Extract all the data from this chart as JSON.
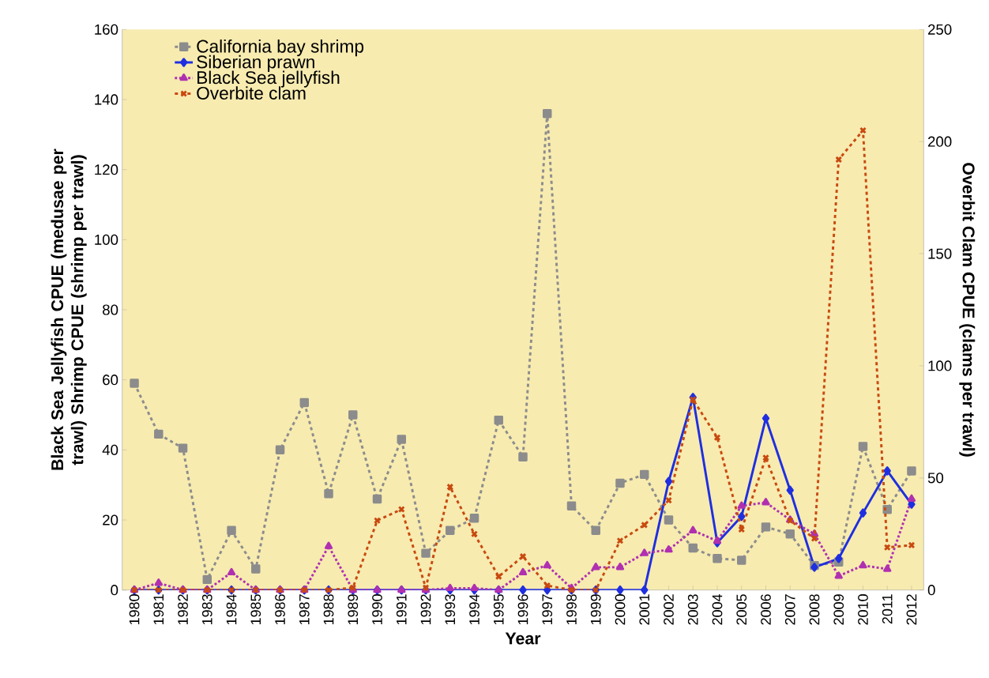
{
  "chart_data": {
    "type": "line",
    "xlabel": "Year",
    "ylabel": "Black Sea Jellyfish CPUE (medusae per trawl) Shrimp CPUE (shrimp per trawl)",
    "y2label": "Overbit Clam CPUE (clams per trawl)",
    "categories": [
      "1980",
      "1981",
      "1982",
      "1983",
      "1984",
      "1985",
      "1986",
      "1987",
      "1988",
      "1989",
      "1990",
      "1991",
      "1992",
      "1993",
      "1994",
      "1995",
      "1996",
      "1997",
      "1998",
      "1999",
      "2000",
      "2001",
      "2002",
      "2003",
      "2004",
      "2005",
      "2006",
      "2007",
      "2008",
      "2009",
      "2010",
      "2011",
      "2012"
    ],
    "ylim": [
      0,
      160
    ],
    "yticks": [
      0,
      20,
      40,
      60,
      80,
      100,
      120,
      140,
      160
    ],
    "y2lim": [
      0,
      250
    ],
    "y2ticks": [
      0,
      50,
      100,
      150,
      200,
      250
    ],
    "legend": "top left",
    "series": [
      {
        "name": "California bay shrimp",
        "color": "#8c8c8c",
        "marker": "square",
        "line_style": "dashed",
        "values": [
          59,
          44.5,
          40.5,
          3,
          17,
          6,
          40,
          53.5,
          27.5,
          50,
          26,
          43,
          10.5,
          17,
          20.5,
          48.5,
          38,
          136,
          24,
          17,
          30.5,
          33,
          20,
          12,
          9,
          8.5,
          18,
          16,
          7,
          8,
          41,
          23,
          34
        ]
      },
      {
        "name": "Siberian prawn",
        "color": "#1f2fe0",
        "marker": "diamond",
        "line_style": "solid",
        "values": [
          0,
          0,
          0,
          0,
          0,
          0,
          0,
          0,
          0,
          0,
          0,
          0,
          0,
          0,
          0,
          0,
          0,
          0,
          0,
          0,
          0,
          0,
          31,
          55,
          13.5,
          21,
          49,
          28.5,
          6.5,
          9,
          22,
          34,
          24.5
        ]
      },
      {
        "name": "Black Sea jellyfish",
        "color": "#b030b0",
        "marker": "triangle",
        "line_style": "dotted",
        "values": [
          0,
          2,
          0,
          0,
          5,
          0,
          0,
          0,
          12.5,
          0,
          0,
          0,
          0,
          0.5,
          0.5,
          0,
          5,
          7,
          0.5,
          6.5,
          6.5,
          10.5,
          11.5,
          17,
          14,
          24,
          25,
          20,
          16,
          4,
          7,
          6,
          26
        ]
      },
      {
        "name": "Overbite clam",
        "color": "#c84a10",
        "marker": "cross",
        "line_style": "dashed",
        "axis": "y2",
        "values": [
          0,
          0,
          0,
          0,
          0,
          0,
          0,
          0,
          0,
          1,
          31,
          36,
          1,
          46,
          25,
          6,
          15,
          2,
          0,
          0,
          22,
          29,
          40,
          85,
          68,
          27,
          59,
          31,
          23,
          192,
          205,
          19,
          20
        ]
      }
    ]
  }
}
